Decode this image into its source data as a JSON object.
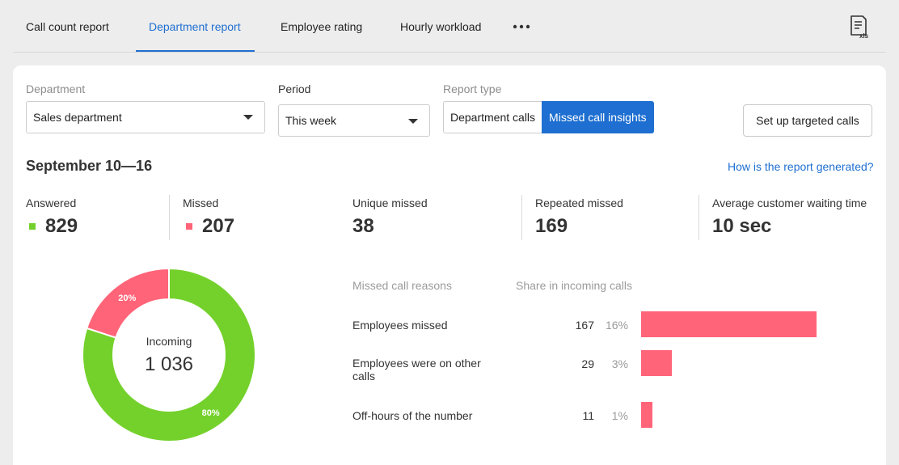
{
  "tabs": [
    {
      "label": "Call count report"
    },
    {
      "label": "Department report"
    },
    {
      "label": "Employee rating"
    },
    {
      "label": "Hourly workload"
    }
  ],
  "icons": {
    "more": "more-horizontal-icon",
    "export": "xls-export-icon"
  },
  "filters": {
    "department": {
      "label": "Department",
      "value": "Sales department"
    },
    "period": {
      "label": "Period",
      "value": "This week"
    },
    "report_type": {
      "label": "Report type",
      "options": [
        "Department calls",
        "Missed call insights"
      ],
      "selected": "Missed call insights"
    }
  },
  "actions": {
    "set_up_targeted": "Set up targeted calls"
  },
  "period_title": "September 10—16",
  "help_link": "How is the report generated?",
  "stats": {
    "answered": {
      "label": "Answered",
      "value": "829"
    },
    "missed": {
      "label": "Missed",
      "value": "207"
    },
    "unique_missed": {
      "label": "Unique missed",
      "value": "38"
    },
    "repeated_missed": {
      "label": "Repeated missed",
      "value": "169"
    },
    "avg_wait": {
      "label": "Average customer waiting time",
      "value": "10 sec"
    }
  },
  "colors": {
    "accent": "#1e6fd1",
    "answered": "#74d12c",
    "missed": "#ff6479"
  },
  "chart_data": [
    {
      "type": "pie",
      "center_label": "Incoming",
      "center_value": "1 036",
      "series": [
        {
          "value": 829,
          "label": "80%",
          "color": "#74d12c"
        },
        {
          "value": 207,
          "label": "20%",
          "color": "#ff6479"
        }
      ]
    },
    {
      "type": "bar",
      "headers": [
        "Missed call reasons",
        "Share in incoming calls"
      ],
      "rows": [
        {
          "reason": "Employees missed",
          "count": 167,
          "share": "16%"
        },
        {
          "reason": "Employees were on other calls",
          "count": 29,
          "share": "3%"
        },
        {
          "reason": "Off-hours of the number",
          "count": 11,
          "share": "1%"
        }
      ],
      "color": "#ff6479"
    }
  ]
}
